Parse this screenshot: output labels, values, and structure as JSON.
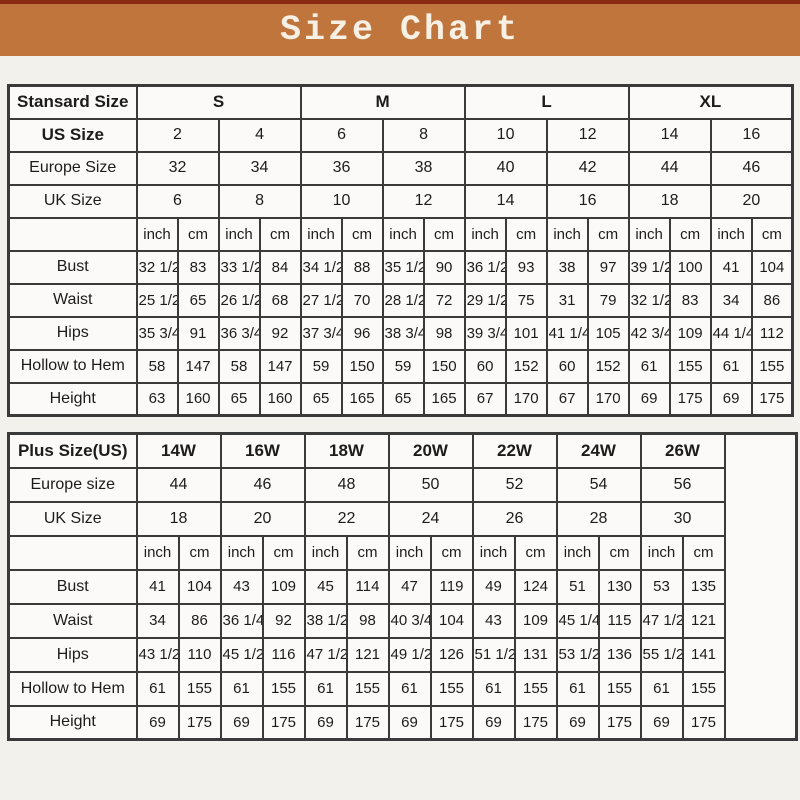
{
  "title": "Size Chart",
  "colors": {
    "top_strip": "#8a2a14",
    "banner": "#c0753c",
    "page_background": "#f3f1ec",
    "cell_background": "#fbfaf8",
    "table_border": "#3a3a3a",
    "title_text": "#f7f0e4"
  },
  "chart_data": [
    {
      "type": "table",
      "name": "standard-size-table",
      "corner_label": "Stansard Size",
      "group_headers": [
        "S",
        "M",
        "L",
        "XL"
      ],
      "size_rows": [
        {
          "label": "US Size",
          "bold": true,
          "values": [
            "2",
            "4",
            "6",
            "8",
            "10",
            "12",
            "14",
            "16"
          ]
        },
        {
          "label": "Europe Size",
          "bold": false,
          "values": [
            "32",
            "34",
            "36",
            "38",
            "40",
            "42",
            "44",
            "46"
          ]
        },
        {
          "label": "UK Size",
          "bold": false,
          "values": [
            "6",
            "8",
            "10",
            "12",
            "14",
            "16",
            "18",
            "20"
          ]
        }
      ],
      "unit_row": [
        "inch",
        "cm",
        "inch",
        "cm",
        "inch",
        "cm",
        "inch",
        "cm",
        "inch",
        "cm",
        "inch",
        "cm",
        "inch",
        "cm",
        "inch",
        "cm"
      ],
      "measurement_rows": [
        {
          "label": "Bust",
          "values": [
            "32 1/2",
            "83",
            "33 1/2",
            "84",
            "34 1/2",
            "88",
            "35 1/2",
            "90",
            "36 1/2",
            "93",
            "38",
            "97",
            "39 1/2",
            "100",
            "41",
            "104"
          ]
        },
        {
          "label": "Waist",
          "values": [
            "25 1/2",
            "65",
            "26 1/2",
            "68",
            "27 1/2",
            "70",
            "28 1/2",
            "72",
            "29 1/2",
            "75",
            "31",
            "79",
            "32 1/2",
            "83",
            "34",
            "86"
          ]
        },
        {
          "label": "Hips",
          "values": [
            "35 3/4",
            "91",
            "36 3/4",
            "92",
            "37 3/4",
            "96",
            "38 3/4",
            "98",
            "39 3/4",
            "101",
            "41 1/4",
            "105",
            "42 3/4",
            "109",
            "44 1/4",
            "112"
          ]
        },
        {
          "label": "Hollow to Hem",
          "values": [
            "58",
            "147",
            "58",
            "147",
            "59",
            "150",
            "59",
            "150",
            "60",
            "152",
            "60",
            "152",
            "61",
            "155",
            "61",
            "155"
          ]
        },
        {
          "label": "Height",
          "values": [
            "63",
            "160",
            "65",
            "160",
            "65",
            "165",
            "65",
            "165",
            "67",
            "170",
            "67",
            "170",
            "69",
            "175",
            "69",
            "175"
          ]
        }
      ]
    },
    {
      "type": "table",
      "name": "plus-size-table",
      "corner_label": "Plus Size(US)",
      "group_headers": [
        "14W",
        "16W",
        "18W",
        "20W",
        "22W",
        "24W",
        "26W"
      ],
      "size_rows": [
        {
          "label": "Europe size",
          "bold": false,
          "values": [
            "44",
            "46",
            "48",
            "50",
            "52",
            "54",
            "56"
          ]
        },
        {
          "label": "UK Size",
          "bold": false,
          "values": [
            "18",
            "20",
            "22",
            "24",
            "26",
            "28",
            "30"
          ]
        }
      ],
      "unit_row": [
        "inch",
        "cm",
        "inch",
        "cm",
        "inch",
        "cm",
        "inch",
        "cm",
        "inch",
        "cm",
        "inch",
        "cm",
        "inch",
        "cm"
      ],
      "measurement_rows": [
        {
          "label": "Bust",
          "values": [
            "41",
            "104",
            "43",
            "109",
            "45",
            "114",
            "47",
            "119",
            "49",
            "124",
            "51",
            "130",
            "53",
            "135"
          ]
        },
        {
          "label": "Waist",
          "values": [
            "34",
            "86",
            "36 1/4",
            "92",
            "38 1/2",
            "98",
            "40 3/4",
            "104",
            "43",
            "109",
            "45 1/4",
            "115",
            "47 1/2",
            "121"
          ]
        },
        {
          "label": "Hips",
          "values": [
            "43 1/2",
            "110",
            "45 1/2",
            "116",
            "47 1/2",
            "121",
            "49 1/2",
            "126",
            "51 1/2",
            "131",
            "53 1/2",
            "136",
            "55 1/2",
            "141"
          ]
        },
        {
          "label": "Hollow to Hem",
          "values": [
            "61",
            "155",
            "61",
            "155",
            "61",
            "155",
            "61",
            "155",
            "61",
            "155",
            "61",
            "155",
            "61",
            "155"
          ]
        },
        {
          "label": "Height",
          "values": [
            "69",
            "175",
            "69",
            "175",
            "69",
            "175",
            "69",
            "175",
            "69",
            "175",
            "69",
            "175",
            "69",
            "175"
          ]
        }
      ]
    }
  ]
}
